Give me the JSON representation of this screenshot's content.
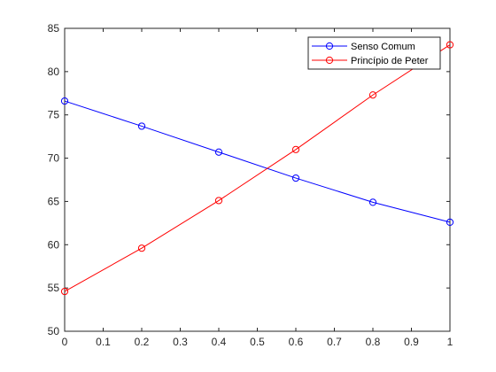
{
  "chart_data": {
    "type": "line",
    "title": "",
    "xlabel": "",
    "ylabel": "",
    "x": [
      0,
      0.2,
      0.4,
      0.6,
      0.8,
      1
    ],
    "xlim": [
      0,
      1
    ],
    "ylim": [
      50,
      85
    ],
    "xticks": [
      "0",
      "0.1",
      "0.2",
      "0.3",
      "0.4",
      "0.5",
      "0.6",
      "0.7",
      "0.8",
      "0.9",
      "1"
    ],
    "yticks": [
      "50",
      "55",
      "60",
      "65",
      "70",
      "75",
      "80",
      "85"
    ],
    "grid": false,
    "legend_position": "top-right",
    "series": [
      {
        "name": "Senso Comum",
        "color": "#0000ff",
        "marker": "circle",
        "values": [
          76.6,
          73.7,
          70.7,
          67.7,
          64.9,
          62.6
        ]
      },
      {
        "name": "Princípio de Peter",
        "color": "#ff0000",
        "marker": "circle",
        "values": [
          54.6,
          59.6,
          65.1,
          71.0,
          77.3,
          83.1
        ]
      }
    ]
  }
}
